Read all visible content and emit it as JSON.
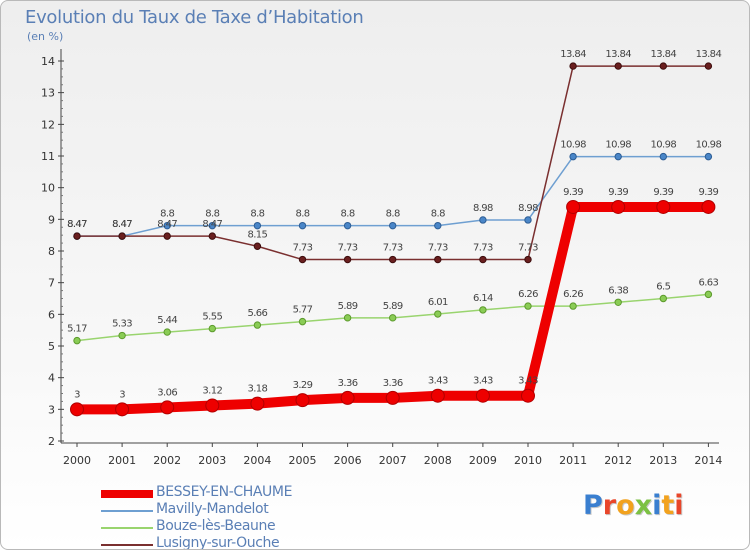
{
  "header": {
    "title": "Evolution du Taux de Taxe d’Habitation",
    "unit": "(en %)"
  },
  "logo": {
    "text": "Proxiti",
    "letter_colors": [
      "#3a7fd0",
      "#e9462a",
      "#f2a21e",
      "#7cc143",
      "#3a7fd0",
      "#f2a21e",
      "#e9462a"
    ]
  },
  "chart_data": {
    "type": "line",
    "title": "Evolution du Taux de Taxe d’Habitation",
    "ylabel": "(en %)",
    "xlabel": "",
    "x": [
      "2000",
      "2001",
      "2002",
      "2003",
      "2004",
      "2005",
      "2006",
      "2007",
      "2008",
      "2009",
      "2010",
      "2011",
      "2012",
      "2013",
      "2014"
    ],
    "ylim": [
      2,
      14
    ],
    "yticks": [
      "2",
      "3",
      "4",
      "5",
      "6",
      "7",
      "8",
      "9",
      "10",
      "11",
      "12",
      "13",
      "14"
    ],
    "grid": false,
    "legend_position": "bottom-left",
    "series": [
      {
        "name": "BESSEY-EN-CHAUME",
        "color": "#ee0000",
        "marker_fill": "#ee0000",
        "marker_stroke": "#b00000",
        "values": [
          3,
          3,
          3.06,
          3.12,
          3.18,
          3.29,
          3.36,
          3.36,
          3.43,
          3.43,
          3.43,
          9.39,
          9.39,
          9.39,
          9.39
        ],
        "labels": [
          "3",
          "3",
          "3.06",
          "3.12",
          "3.18",
          "3.29",
          "3.36",
          "3.36",
          "3.43",
          "3.43",
          "3.43",
          "9.39",
          "9.39",
          "9.39",
          "9.39"
        ]
      },
      {
        "name": "Mavilly-Mandelot",
        "color": "#6e9fd1",
        "marker_fill": "#4a86c8",
        "marker_stroke": "#2d5d94",
        "values": [
          8.47,
          8.47,
          8.8,
          8.8,
          8.8,
          8.8,
          8.8,
          8.8,
          8.8,
          8.98,
          8.98,
          10.98,
          10.98,
          10.98,
          10.98
        ],
        "labels": [
          "8.47",
          "8.47",
          "8.8",
          "8.8",
          "8.8",
          "8.8",
          "8.8",
          "8.8",
          "8.8",
          "8.98",
          "8.98",
          "10.98",
          "10.98",
          "10.98",
          "10.98"
        ]
      },
      {
        "name": "Bouze-lès-Beaune",
        "color": "#99d46e",
        "marker_fill": "#8acc55",
        "marker_stroke": "#5c9a2c",
        "values": [
          5.17,
          5.33,
          5.44,
          5.55,
          5.66,
          5.77,
          5.89,
          5.89,
          6.01,
          6.14,
          6.26,
          6.26,
          6.38,
          6.5,
          6.63
        ],
        "labels": [
          "5.17",
          "5.33",
          "5.44",
          "5.55",
          "5.66",
          "5.77",
          "5.89",
          "5.89",
          "6.01",
          "6.14",
          "6.26",
          "6.26",
          "6.38",
          "6.5",
          "6.63"
        ]
      },
      {
        "name": "Lusigny-sur-Ouche",
        "color": "#7a2f2f",
        "marker_fill": "#6a1f1f",
        "marker_stroke": "#3d0d0d",
        "values": [
          8.47,
          8.47,
          8.47,
          8.47,
          8.15,
          7.73,
          7.73,
          7.73,
          7.73,
          7.73,
          7.73,
          13.84,
          13.84,
          13.84,
          13.84
        ],
        "labels": [
          "8.47",
          "8.47",
          "8.47",
          "8.47",
          "8.15",
          "7.73",
          "7.73",
          "7.73",
          "7.73",
          "7.73",
          "7.73",
          "13.84",
          "13.84",
          "13.84",
          "13.84"
        ]
      }
    ]
  }
}
